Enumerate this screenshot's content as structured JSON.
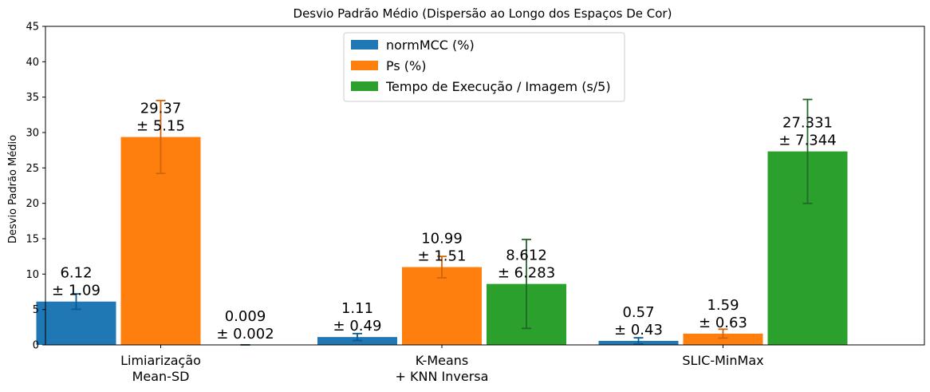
{
  "chart_data": {
    "type": "bar",
    "title": "Desvio Padrão Médio (Dispersão ao Longo dos Espaços De Cor)",
    "xlabel": "",
    "ylabel": "Desvio Padrão Médio",
    "ylim": [
      0,
      45
    ],
    "yticks": [
      "0",
      "5",
      "10",
      "15",
      "20",
      "25",
      "30",
      "35",
      "40",
      "45"
    ],
    "categories": [
      [
        "Limiarização",
        "Mean-SD"
      ],
      [
        "K-Means",
        "+ KNN Inversa"
      ],
      [
        "SLIC-MinMax"
      ]
    ],
    "legend_position": "upper center",
    "grid": false,
    "series": [
      {
        "name": "normMCC (%)",
        "color": "#1f77b4",
        "error_color": "#0b5a94",
        "values": [
          6.12,
          1.11,
          0.57
        ],
        "errors": [
          1.09,
          0.49,
          0.43
        ],
        "labels": [
          [
            "6.12",
            "± 1.09"
          ],
          [
            "1.11",
            "± 0.49"
          ],
          [
            "0.57",
            "± 0.43"
          ]
        ]
      },
      {
        "name": "Ps (%)",
        "color": "#ff7f0e",
        "error_color": "#d2640a",
        "values": [
          29.37,
          10.99,
          1.59
        ],
        "errors": [
          5.15,
          1.51,
          0.63
        ],
        "labels": [
          [
            "29.37",
            "± 5.15"
          ],
          [
            "10.99",
            "± 1.51"
          ],
          [
            "1.59",
            "± 0.63"
          ]
        ]
      },
      {
        "name": "Tempo de Execução / Imagem (s/5)",
        "color": "#2ca02c",
        "error_color": "#23672a",
        "values": [
          0.009,
          8.612,
          27.331
        ],
        "errors": [
          0.002,
          6.283,
          7.344
        ],
        "labels": [
          [
            "0.009",
            "± 0.002"
          ],
          [
            "8.612",
            "± 6.283"
          ],
          [
            "27.331",
            "± 7.344"
          ]
        ]
      }
    ]
  }
}
